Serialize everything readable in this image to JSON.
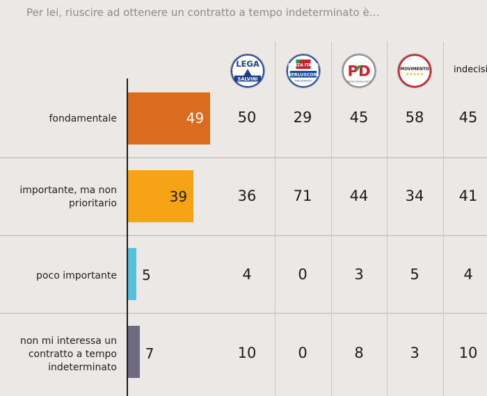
{
  "title": "Per lei, riuscire ad ottenere un contratto a tempo indeterminato è…",
  "parties": [
    {
      "id": "lega",
      "logo_text": "LEGA",
      "logo_sub": "SALVINI"
    },
    {
      "id": "forza-italia",
      "logo_text": "FORZA ITALIA",
      "logo_sub": "BERLUSCONI",
      "logo_sub2": "PRESIDENTE"
    },
    {
      "id": "pd",
      "logo_text": "PD",
      "logo_sub": "Partito Democratico"
    },
    {
      "id": "m5s",
      "logo_text": "MOVIMENTO",
      "logo_sub": "★★★★★"
    },
    {
      "id": "indecisi",
      "label": "indecisi"
    }
  ],
  "colors": {
    "background": "#ebe8e5",
    "bars": [
      "#d96c1f",
      "#f6a314",
      "#56bfd9",
      "#6e6a80"
    ]
  },
  "chart_data": {
    "type": "bar",
    "orientation": "horizontal",
    "categories": [
      "fondamentale",
      "importante, ma non prioritario",
      "poco importante",
      "non mi interessa un contratto a tempo indeterminato"
    ],
    "category_lines": [
      [
        "fondamentale"
      ],
      [
        "importante, ma non",
        "prioritario"
      ],
      [
        "poco importante"
      ],
      [
        "non mi interessa un",
        "contratto a tempo",
        "indeterminato"
      ]
    ],
    "values": [
      49,
      39,
      5,
      7
    ],
    "xlim": [
      0,
      100
    ],
    "table": {
      "columns": [
        "lega",
        "forza-italia",
        "pd",
        "m5s",
        "indecisi"
      ],
      "rows": [
        [
          50,
          29,
          45,
          58,
          45
        ],
        [
          36,
          71,
          44,
          34,
          41
        ],
        [
          4,
          0,
          3,
          5,
          4
        ],
        [
          10,
          0,
          8,
          3,
          10
        ]
      ]
    }
  }
}
